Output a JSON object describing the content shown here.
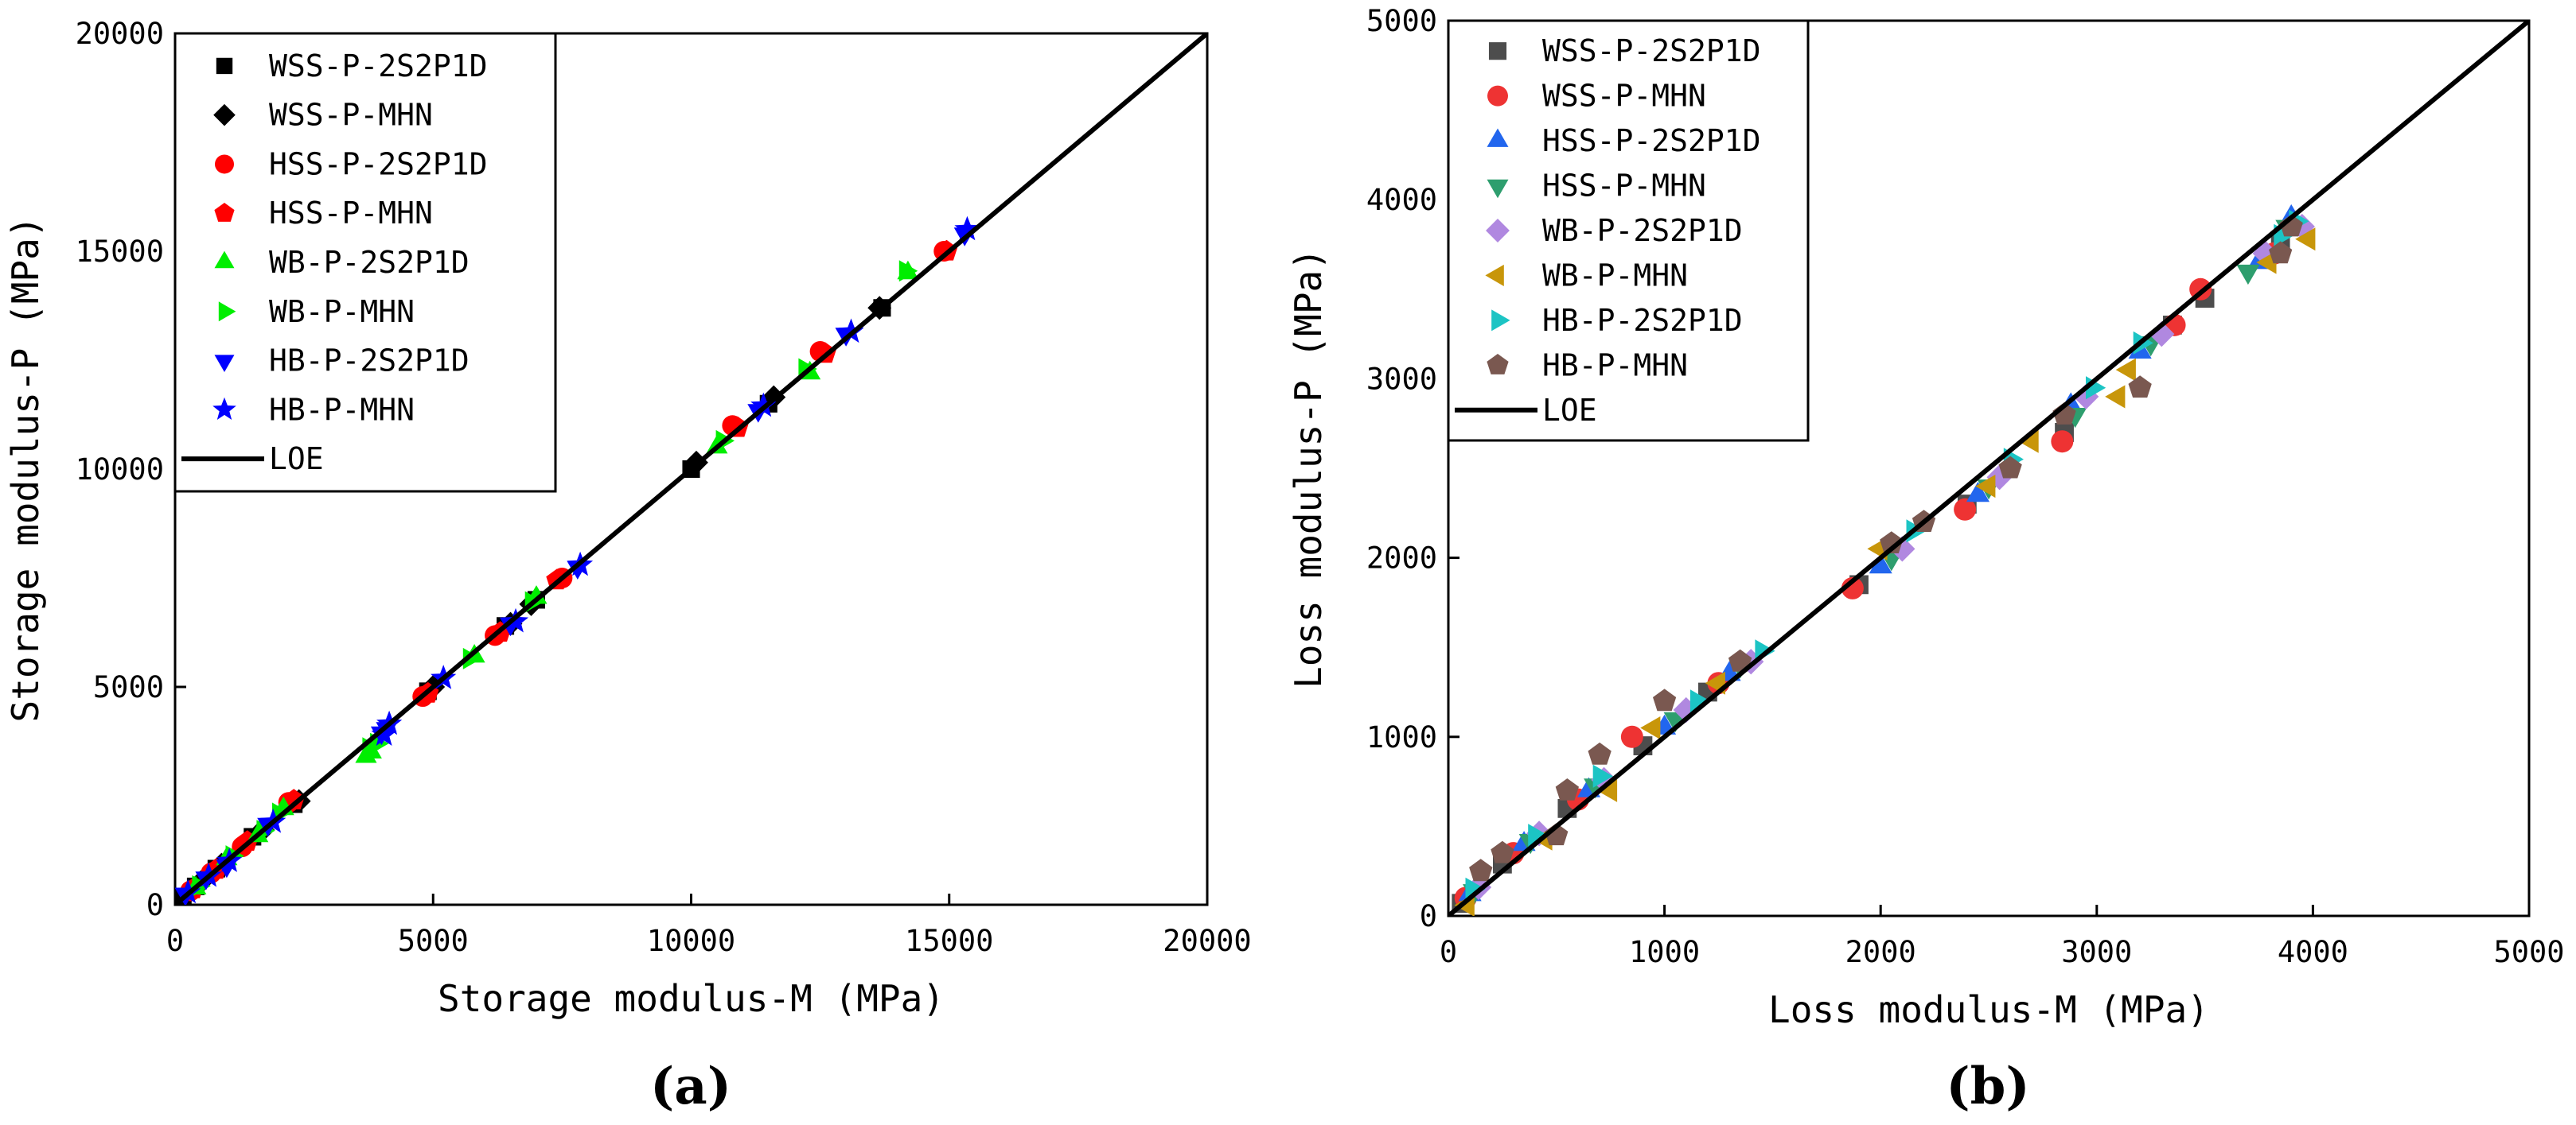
{
  "chart_data": [
    {
      "type": "scatter",
      "panel_label": "(a)",
      "xlabel": "Storage modulus-M (MPa)",
      "ylabel": "Storage modulus-P (MPa)",
      "xlim": [
        0,
        20000
      ],
      "ylim": [
        0,
        20000
      ],
      "xticks": [
        0,
        5000,
        10000,
        15000,
        20000
      ],
      "yticks": [
        0,
        5000,
        10000,
        15000,
        20000
      ],
      "legend_position": "top-left",
      "series": [
        {
          "name": "WSS-P-2S2P1D",
          "marker": "square",
          "color": "#000000",
          "points": [
            [
              150,
              160
            ],
            [
              400,
              420
            ],
            [
              800,
              830
            ],
            [
              1500,
              1560
            ],
            [
              2300,
              2310
            ],
            [
              4900,
              4900
            ],
            [
              6400,
              6400
            ],
            [
              7000,
              7000
            ],
            [
              10000,
              10000
            ],
            [
              11500,
              11500
            ],
            [
              13700,
              13700
            ]
          ]
        },
        {
          "name": "WSS-P-MHN",
          "marker": "diamond",
          "color": "#000000",
          "points": [
            [
              200,
              210
            ],
            [
              500,
              520
            ],
            [
              900,
              920
            ],
            [
              1700,
              1720
            ],
            [
              2400,
              2380
            ],
            [
              5000,
              5000
            ],
            [
              6500,
              6450
            ],
            [
              6900,
              6900
            ],
            [
              10100,
              10150
            ],
            [
              11600,
              11650
            ],
            [
              13650,
              13700
            ]
          ]
        },
        {
          "name": "HSS-P-2S2P1D",
          "marker": "circle",
          "color": "#ff0000",
          "points": [
            [
              300,
              320
            ],
            [
              700,
              730
            ],
            [
              1300,
              1330
            ],
            [
              2200,
              2350
            ],
            [
              4800,
              4780
            ],
            [
              6200,
              6180
            ],
            [
              7500,
              7500
            ],
            [
              10800,
              11000
            ],
            [
              12500,
              12700
            ],
            [
              14900,
              15000
            ]
          ]
        },
        {
          "name": "HSS-P-MHN",
          "marker": "pentagon",
          "color": "#ff0000",
          "points": [
            [
              350,
              360
            ],
            [
              800,
              810
            ],
            [
              1400,
              1450
            ],
            [
              2300,
              2400
            ],
            [
              4900,
              4850
            ],
            [
              6300,
              6250
            ],
            [
              7400,
              7450
            ],
            [
              10900,
              10950
            ],
            [
              12600,
              12650
            ],
            [
              14950,
              15000
            ]
          ]
        },
        {
          "name": "WB-P-2S2P1D",
          "marker": "triangle-up",
          "color": "#00ee00",
          "points": [
            [
              400,
              380
            ],
            [
              1000,
              1050
            ],
            [
              1600,
              1580
            ],
            [
              2100,
              2200
            ],
            [
              3700,
              3400
            ],
            [
              3800,
              3500
            ],
            [
              5800,
              5700
            ],
            [
              7000,
              7050
            ],
            [
              10500,
              10500
            ],
            [
              12300,
              12200
            ],
            [
              14200,
              14500
            ]
          ]
        },
        {
          "name": "WB-P-MHN",
          "marker": "triangle-right",
          "color": "#00ee00",
          "points": [
            [
              450,
              430
            ],
            [
              1100,
              1120
            ],
            [
              1700,
              1700
            ],
            [
              2000,
              2100
            ],
            [
              3750,
              3600
            ],
            [
              3900,
              3700
            ],
            [
              5700,
              5650
            ],
            [
              6900,
              6950
            ],
            [
              10600,
              10650
            ],
            [
              12200,
              12300
            ],
            [
              14150,
              14550
            ]
          ]
        },
        {
          "name": "HB-P-2S2P1D",
          "marker": "triangle-down",
          "color": "#0000ff",
          "points": [
            [
              200,
              250
            ],
            [
              600,
              620
            ],
            [
              1000,
              900
            ],
            [
              1800,
              1850
            ],
            [
              4000,
              3950
            ],
            [
              4100,
              4050
            ],
            [
              6500,
              6450
            ],
            [
              7800,
              7750
            ],
            [
              11300,
              11350
            ],
            [
              13000,
              13100
            ],
            [
              15300,
              15400
            ]
          ]
        },
        {
          "name": "HB-P-MHN",
          "marker": "star",
          "color": "#0000ff",
          "points": [
            [
              250,
              280
            ],
            [
              650,
              660
            ],
            [
              1050,
              1000
            ],
            [
              1900,
              1900
            ],
            [
              4050,
              3900
            ],
            [
              4150,
              4150
            ],
            [
              5200,
              5200
            ],
            [
              6600,
              6500
            ],
            [
              7850,
              7800
            ],
            [
              11400,
              11450
            ],
            [
              13100,
              13150
            ],
            [
              15350,
              15500
            ]
          ]
        }
      ],
      "reference_line": {
        "name": "LOE",
        "from": [
          0,
          0
        ],
        "to": [
          20000,
          20000
        ],
        "color": "#000000"
      }
    },
    {
      "type": "scatter",
      "panel_label": "(b)",
      "xlabel": "Loss modulus-M (MPa)",
      "ylabel": "Loss modulus-P (MPa)",
      "xlim": [
        0,
        5000
      ],
      "ylim": [
        0,
        5000
      ],
      "xticks": [
        0,
        1000,
        2000,
        3000,
        4000,
        5000
      ],
      "yticks": [
        0,
        1000,
        2000,
        3000,
        4000,
        5000
      ],
      "legend_position": "top-left",
      "series": [
        {
          "name": "WSS-P-2S2P1D",
          "marker": "square",
          "color": "#4d4d4d",
          "points": [
            [
              60,
              70
            ],
            [
              250,
              290
            ],
            [
              550,
              600
            ],
            [
              900,
              950
            ],
            [
              1200,
              1250
            ],
            [
              1900,
              1850
            ],
            [
              2400,
              2300
            ],
            [
              2850,
              2700
            ],
            [
              3350,
              3300
            ],
            [
              3500,
              3450
            ],
            [
              3850,
              3750
            ]
          ]
        },
        {
          "name": "WSS-P-MHN",
          "marker": "circle",
          "color": "#ee3333",
          "points": [
            [
              80,
              100
            ],
            [
              300,
              350
            ],
            [
              600,
              650
            ],
            [
              850,
              1000
            ],
            [
              1250,
              1300
            ],
            [
              1870,
              1830
            ],
            [
              2390,
              2270
            ],
            [
              2840,
              2650
            ],
            [
              3360,
              3300
            ],
            [
              3480,
              3500
            ],
            [
              3820,
              3700
            ]
          ]
        },
        {
          "name": "HSS-P-2S2P1D",
          "marker": "triangle-up",
          "color": "#2266ee",
          "points": [
            [
              100,
              120
            ],
            [
              350,
              400
            ],
            [
              650,
              700
            ],
            [
              1000,
              1050
            ],
            [
              1300,
              1350
            ],
            [
              2000,
              1950
            ],
            [
              2450,
              2350
            ],
            [
              2880,
              2850
            ],
            [
              3200,
              3150
            ],
            [
              3750,
              3650
            ],
            [
              3900,
              3900
            ]
          ]
        },
        {
          "name": "HSS-P-MHN",
          "marker": "triangle-down",
          "color": "#2e9e6e",
          "points": [
            [
              120,
              140
            ],
            [
              380,
              420
            ],
            [
              680,
              730
            ],
            [
              1050,
              1100
            ],
            [
              1350,
              1400
            ],
            [
              2050,
              2000
            ],
            [
              2500,
              2400
            ],
            [
              2900,
              2800
            ],
            [
              3250,
              3200
            ],
            [
              3700,
              3600
            ],
            [
              3880,
              3850
            ]
          ]
        },
        {
          "name": "WB-P-2S2P1D",
          "marker": "diamond",
          "color": "#b088e0",
          "points": [
            [
              140,
              160
            ],
            [
              420,
              460
            ],
            [
              720,
              760
            ],
            [
              1100,
              1150
            ],
            [
              1400,
              1420
            ],
            [
              2100,
              2050
            ],
            [
              2550,
              2450
            ],
            [
              2950,
              2900
            ],
            [
              3300,
              3250
            ],
            [
              3780,
              3700
            ],
            [
              3950,
              3850
            ]
          ]
        },
        {
          "name": "WB-P-MHN",
          "marker": "triangle-left",
          "color": "#c8960a",
          "points": [
            [
              90,
              60
            ],
            [
              450,
              430
            ],
            [
              750,
              700
            ],
            [
              950,
              1050
            ],
            [
              1250,
              1300
            ],
            [
              2000,
              2050
            ],
            [
              2500,
              2400
            ],
            [
              2700,
              2650
            ],
            [
              3100,
              2900
            ],
            [
              3150,
              3050
            ],
            [
              3800,
              3650
            ],
            [
              3980,
              3780
            ]
          ]
        },
        {
          "name": "HB-P-2S2P1D",
          "marker": "triangle-right",
          "color": "#1cc4c4",
          "points": [
            [
              110,
              150
            ],
            [
              400,
              450
            ],
            [
              700,
              780
            ],
            [
              1150,
              1200
            ],
            [
              1450,
              1480
            ],
            [
              2150,
              2150
            ],
            [
              2600,
              2550
            ],
            [
              2980,
              2950
            ],
            [
              3200,
              3200
            ],
            [
              3850,
              3800
            ],
            [
              3920,
              3880
            ]
          ]
        },
        {
          "name": "HB-P-MHN",
          "marker": "pentagon",
          "color": "#7a5850",
          "points": [
            [
              150,
              250
            ],
            [
              250,
              350
            ],
            [
              500,
              450
            ],
            [
              550,
              700
            ],
            [
              700,
              900
            ],
            [
              1000,
              1200
            ],
            [
              1350,
              1420
            ],
            [
              2050,
              2080
            ],
            [
              2200,
              2200
            ],
            [
              2600,
              2500
            ],
            [
              2850,
              2800
            ],
            [
              3200,
              2950
            ],
            [
              3850,
              3700
            ],
            [
              3900,
              3850
            ]
          ]
        }
      ],
      "reference_line": {
        "name": "LOE",
        "from": [
          0,
          0
        ],
        "to": [
          5000,
          5000
        ],
        "color": "#000000"
      }
    }
  ]
}
